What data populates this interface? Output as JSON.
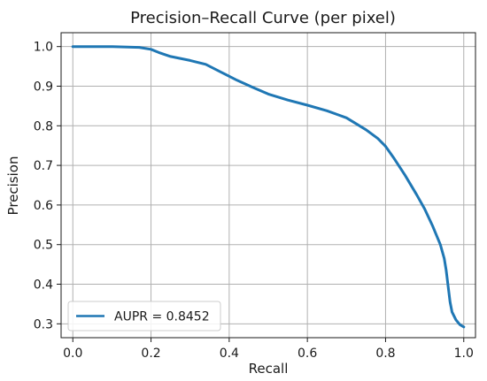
{
  "chart_data": {
    "type": "line",
    "title": "Precision–Recall Curve (per pixel)",
    "xlabel": "Recall",
    "ylabel": "Precision",
    "xlim": [
      -0.03,
      1.03
    ],
    "ylim": [
      0.265,
      1.035
    ],
    "xticks": [
      0.0,
      0.2,
      0.4,
      0.6,
      0.8,
      1.0
    ],
    "xtick_labels": [
      "0.0",
      "0.2",
      "0.4",
      "0.6",
      "0.8",
      "1.0"
    ],
    "yticks": [
      0.3,
      0.4,
      0.5,
      0.6,
      0.7,
      0.8,
      0.9,
      1.0
    ],
    "ytick_labels": [
      "0.3",
      "0.4",
      "0.5",
      "0.6",
      "0.7",
      "0.8",
      "0.9",
      "1.0"
    ],
    "grid": true,
    "legend_position": "lower-left",
    "series": [
      {
        "name": "AUPR = 0.8452",
        "color": "#1f77b4",
        "x": [
          0.0,
          0.1,
          0.17,
          0.2,
          0.22,
          0.25,
          0.3,
          0.34,
          0.38,
          0.42,
          0.46,
          0.5,
          0.55,
          0.6,
          0.65,
          0.7,
          0.75,
          0.78,
          0.8,
          0.82,
          0.85,
          0.88,
          0.9,
          0.92,
          0.94,
          0.95,
          0.955,
          0.96,
          0.965,
          0.97,
          0.98,
          0.99,
          1.0
        ],
        "y": [
          1.0,
          1.0,
          0.998,
          0.993,
          0.985,
          0.975,
          0.965,
          0.955,
          0.935,
          0.915,
          0.897,
          0.88,
          0.865,
          0.852,
          0.838,
          0.82,
          0.79,
          0.768,
          0.748,
          0.72,
          0.675,
          0.625,
          0.59,
          0.548,
          0.5,
          0.465,
          0.435,
          0.395,
          0.355,
          0.33,
          0.31,
          0.298,
          0.292
        ]
      }
    ]
  }
}
